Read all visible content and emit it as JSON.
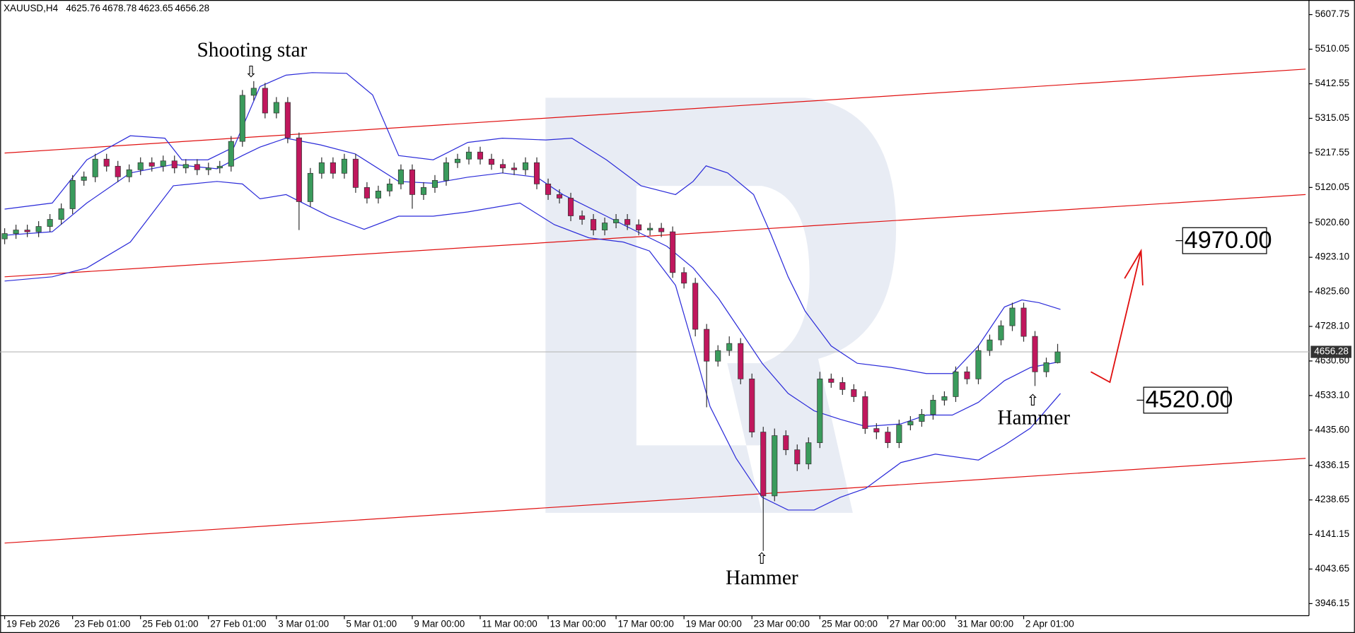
{
  "chart_data": {
    "type": "candlestick",
    "title": "XAUUSD,H4",
    "x": [
      0,
      2,
      4,
      6,
      8,
      10,
      12,
      14,
      16,
      18,
      20,
      22,
      24,
      26,
      28,
      30,
      32,
      34,
      36,
      38,
      40,
      42,
      44,
      46,
      48,
      50,
      52,
      54,
      56,
      58,
      60,
      62,
      64,
      66,
      68,
      70,
      72,
      74,
      76,
      78,
      80,
      82,
      84,
      86,
      88,
      90,
      92,
      94,
      96,
      98,
      100,
      102,
      104,
      106,
      108,
      110,
      112,
      114,
      116,
      118,
      120,
      122,
      124,
      126,
      128,
      130,
      132,
      134,
      136,
      138,
      140,
      142,
      144,
      146,
      148,
      150,
      152,
      154,
      156,
      158,
      160,
      162,
      164,
      166,
      168,
      170,
      172,
      174,
      176,
      178,
      180,
      182,
      184,
      186
    ],
    "open": [
      4975,
      4990,
      5000,
      4995,
      5010,
      5030,
      5060,
      5140,
      5150,
      5200,
      5180,
      5150,
      5170,
      5190,
      5180,
      5195,
      5175,
      5185,
      5170,
      5175,
      5180,
      5250,
      5380,
      5400,
      5330,
      5360,
      5260,
      5080,
      5160,
      5190,
      5160,
      5200,
      5120,
      5090,
      5110,
      5130,
      5170,
      5100,
      5120,
      5140,
      5190,
      5200,
      5220,
      5200,
      5185,
      5175,
      5170,
      5190,
      5130,
      5100,
      5090,
      5040,
      5030,
      5000,
      5020,
      5030,
      5015,
      5000,
      5005,
      4995,
      4880,
      4850,
      4720,
      4630,
      4660,
      4680,
      4580,
      4430,
      4250,
      4420,
      4380,
      4340,
      4400,
      4580,
      4570,
      4550,
      4530,
      4440,
      4430,
      4400,
      4450,
      4460,
      4480,
      4520,
      4530,
      4600,
      4580,
      4660,
      4690,
      4730,
      4780,
      4700,
      4600,
      4625.76
    ],
    "high": [
      5005,
      5015,
      5015,
      5025,
      5045,
      5075,
      5155,
      5165,
      5215,
      5215,
      5195,
      5185,
      5205,
      5205,
      5210,
      5210,
      5200,
      5200,
      5190,
      5195,
      5265,
      5395,
      5420,
      5415,
      5375,
      5375,
      5275,
      5175,
      5205,
      5205,
      5215,
      5215,
      5135,
      5125,
      5145,
      5185,
      5185,
      5135,
      5155,
      5205,
      5215,
      5235,
      5235,
      5215,
      5200,
      5190,
      5205,
      5205,
      5145,
      5115,
      5105,
      5055,
      5045,
      5035,
      5045,
      5045,
      5030,
      5020,
      5020,
      5010,
      4895,
      4865,
      4735,
      4675,
      4700,
      4695,
      4595,
      4445,
      4440,
      4435,
      4395,
      4415,
      4600,
      4595,
      4585,
      4565,
      4545,
      4455,
      4445,
      4465,
      4475,
      4495,
      4535,
      4545,
      4615,
      4615,
      4675,
      4705,
      4745,
      4795,
      4795,
      4715,
      4640,
      4678.78
    ],
    "low": [
      4960,
      4975,
      4980,
      4980,
      4995,
      5015,
      5045,
      5125,
      5135,
      5165,
      5135,
      5135,
      5155,
      5165,
      5165,
      5160,
      5160,
      5155,
      5155,
      5160,
      5165,
      5235,
      5365,
      5315,
      5315,
      5245,
      5000,
      5065,
      5145,
      5145,
      5145,
      5105,
      5075,
      5075,
      5095,
      5115,
      5060,
      5085,
      5105,
      5125,
      5175,
      5185,
      5185,
      5170,
      5160,
      5155,
      5155,
      5115,
      5085,
      5075,
      5025,
      5015,
      4985,
      4985,
      5005,
      5000,
      4985,
      4985,
      4980,
      4865,
      4835,
      4700,
      4500,
      4615,
      4645,
      4565,
      4415,
      4095,
      4235,
      4365,
      4320,
      4325,
      4385,
      4555,
      4535,
      4515,
      4425,
      4410,
      4385,
      4385,
      4435,
      4445,
      4465,
      4505,
      4515,
      4565,
      4565,
      4645,
      4675,
      4715,
      4685,
      4560,
      4585,
      4623.65
    ],
    "close": [
      4990,
      5000,
      4995,
      5010,
      5030,
      5060,
      5140,
      5150,
      5200,
      5180,
      5150,
      5170,
      5190,
      5180,
      5195,
      5175,
      5185,
      5170,
      5175,
      5180,
      5250,
      5380,
      5400,
      5330,
      5360,
      5260,
      5080,
      5160,
      5190,
      5160,
      5200,
      5120,
      5090,
      5110,
      5130,
      5170,
      5100,
      5120,
      5140,
      5190,
      5200,
      5220,
      5200,
      5185,
      5175,
      5170,
      5190,
      5130,
      5100,
      5090,
      5040,
      5030,
      5000,
      5020,
      5030,
      5015,
      5000,
      5005,
      4995,
      4880,
      4850,
      4720,
      4630,
      4660,
      4680,
      4580,
      4430,
      4250,
      4420,
      4380,
      4340,
      4400,
      4580,
      4570,
      4550,
      4530,
      4440,
      4430,
      4400,
      4450,
      4460,
      4480,
      4520,
      4530,
      4600,
      4580,
      4660,
      4690,
      4730,
      4780,
      4700,
      4600,
      4625.76,
      4656.28
    ],
    "up_color": "#3a9b5c",
    "down_color": "#c0175d",
    "wick_color": "#333333",
    "bands": {
      "color": "#2b2bd9",
      "upper": {
        "x": [
          0,
          8.4,
          14.5,
          22.2,
          28.3,
          31.3,
          35.9,
          40.5,
          45.1,
          49.7,
          54.3,
          60.4,
          65,
          69.6,
          75.7,
          81.8,
          87.9,
          95.6,
          100.2,
          106.3,
          112.4,
          118.5,
          121.6,
          123.9,
          127.7,
          132.3,
          135.3,
          138.4,
          141.4,
          146,
          150.6,
          156.7,
          162.8,
          167.4,
          172,
          176.6,
          179.7,
          182.7,
          186.5
        ],
        "values": [
          5059,
          5076,
          5198,
          5266,
          5259,
          5198,
          5198,
          5234,
          5405,
          5437,
          5444,
          5442,
          5381,
          5210,
          5198,
          5247,
          5259,
          5254,
          5259,
          5198,
          5125,
          5100,
          5137,
          5181,
          5161,
          5100,
          4990,
          4868,
          4771,
          4673,
          4624,
          4612,
          4595,
          4595,
          4673,
          4783,
          4803,
          4795,
          4776
        ]
      },
      "middle": {
        "x": [
          0,
          8.4,
          14.5,
          22.2,
          29.8,
          37.5,
          42,
          45.1,
          49.7,
          55.8,
          61.9,
          69.6,
          75.7,
          81.8,
          87.9,
          94,
          98.6,
          106.3,
          112.4,
          117,
          121.6,
          126.1,
          130.7,
          133.8,
          138.4,
          143,
          147.6,
          152.1,
          158.3,
          162.8,
          167.4,
          172,
          176.6,
          181.2,
          186.5
        ],
        "values": [
          4985,
          4995,
          5076,
          5161,
          5185,
          5173,
          5210,
          5234,
          5259,
          5240,
          5215,
          5137,
          5132,
          5149,
          5161,
          5149,
          5100,
          5039,
          4990,
          4954,
          4893,
          4807,
          4698,
          4624,
          4539,
          4490,
          4466,
          4446,
          4453,
          4478,
          4478,
          4514,
          4575,
          4612,
          4629
        ]
      },
      "lower": {
        "x": [
          0,
          8.4,
          14.5,
          22.2,
          29.8,
          37.5,
          42,
          45.1,
          49.7,
          57.3,
          63.5,
          69.6,
          75.7,
          81.8,
          91,
          97.1,
          103.2,
          109.3,
          113.9,
          118.5,
          121.6,
          124.6,
          129.2,
          133.8,
          138.4,
          143,
          147.6,
          152.1,
          158.3,
          164.4,
          172,
          176.6,
          181.2,
          186.5
        ],
        "values": [
          4856,
          4868,
          4893,
          4966,
          5125,
          5137,
          5130,
          5088,
          5100,
          5039,
          5002,
          5039,
          5039,
          5051,
          5076,
          5015,
          4978,
          4966,
          4941,
          4844,
          4673,
          4502,
          4356,
          4246,
          4210,
          4210,
          4246,
          4271,
          4344,
          4368,
          4351,
          4393,
          4441,
          4539
        ]
      }
    },
    "channels": {
      "color": "#e01010",
      "lines": [
        {
          "x": [
            0,
            229.8
          ],
          "values": [
            5217,
            5454
          ]
        },
        {
          "x": [
            0,
            229.8
          ],
          "values": [
            4868,
            5100
          ]
        },
        {
          "x": [
            0,
            229.8
          ],
          "values": [
            4117,
            4356
          ]
        }
      ]
    },
    "last_price": 4656.28,
    "levels": [
      {
        "value": 4970,
        "label": "4970.00"
      },
      {
        "value": 4520,
        "label": "4520.00"
      }
    ],
    "annotations": [
      "Shooting star",
      "Hammer",
      "Hammer"
    ],
    "xlim": [
      -0.8,
      230.4
    ],
    "ylim": [
      3912,
      5644
    ],
    "xticks": [
      {
        "value": 0,
        "label": "19 Feb 2026"
      },
      {
        "value": 12,
        "label": "23 Feb 01:00"
      },
      {
        "value": 24,
        "label": "25 Feb 01:00"
      },
      {
        "value": 36,
        "label": "27 Feb 01:00"
      },
      {
        "value": 48,
        "label": "3 Mar 01:00"
      },
      {
        "value": 60,
        "label": "5 Mar 01:00"
      },
      {
        "value": 72,
        "label": "9 Mar 00:00"
      },
      {
        "value": 84,
        "label": "11 Mar 00:00"
      },
      {
        "value": 96,
        "label": "13 Mar 00:00"
      },
      {
        "value": 108,
        "label": "17 Mar 00:00"
      },
      {
        "value": 120,
        "label": "19 Mar 00:00"
      },
      {
        "value": 132,
        "label": "23 Mar 00:00"
      },
      {
        "value": 144,
        "label": "25 Mar 00:00"
      },
      {
        "value": 156,
        "label": "27 Mar 00:00"
      },
      {
        "value": 168,
        "label": "31 Mar 00:00"
      },
      {
        "value": 180,
        "label": "2 Apr 01:00"
      }
    ],
    "yticks": [
      {
        "value": 5607.75,
        "label": "5607.75"
      },
      {
        "value": 5510.05,
        "label": "5510.05"
      },
      {
        "value": 5412.55,
        "label": "5412.55"
      },
      {
        "value": 5315.05,
        "label": "5315.05"
      },
      {
        "value": 5217.55,
        "label": "5217.55"
      },
      {
        "value": 5120.05,
        "label": "5120.05"
      },
      {
        "value": 5020.6,
        "label": "5020.60"
      },
      {
        "value": 4923.1,
        "label": "4923.10"
      },
      {
        "value": 4825.6,
        "label": "4825.60"
      },
      {
        "value": 4728.1,
        "label": "4728.10"
      },
      {
        "value": 4630.6,
        "label": "4630.60"
      },
      {
        "value": 4533.1,
        "label": "4533.10"
      },
      {
        "value": 4435.6,
        "label": "4435.60"
      },
      {
        "value": 4336.15,
        "label": "4336.15"
      },
      {
        "value": 4238.65,
        "label": "4238.65"
      },
      {
        "value": 4141.15,
        "label": "4141.15"
      },
      {
        "value": 4043.65,
        "label": "4043.65"
      },
      {
        "value": 3946.15,
        "label": "3946.15"
      }
    ]
  }
}
